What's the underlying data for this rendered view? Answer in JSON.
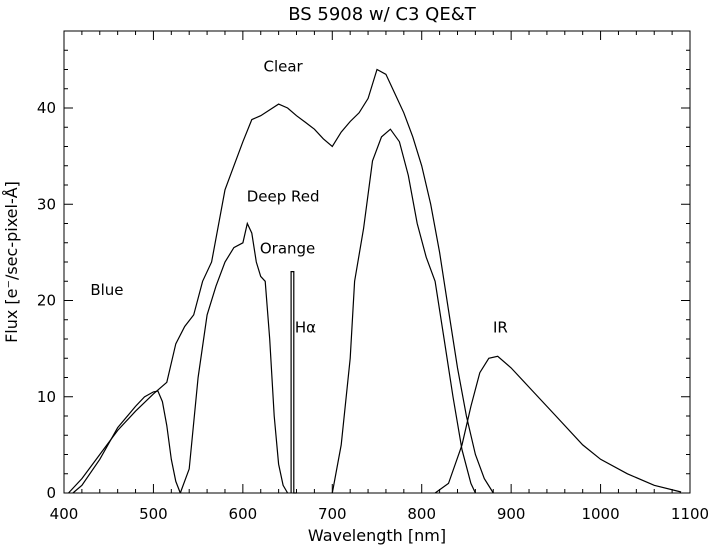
{
  "chart_data": {
    "type": "line",
    "title": "BS 5908 w/ C3 QE&T",
    "xlabel": "Wavelength [nm]",
    "ylabel": "Flux [e⁻/sec-pixel-Å]",
    "xlim": [
      400,
      1100
    ],
    "ylim": [
      0,
      48
    ],
    "xticks": [
      400,
      500,
      600,
      700,
      800,
      900,
      1000,
      1100
    ],
    "yticks": [
      0,
      10,
      20,
      30,
      40
    ],
    "grid": false,
    "annotations": [
      {
        "text": "Clear",
        "x": 645,
        "y": 44.3
      },
      {
        "text": "Deep Red",
        "x": 645,
        "y": 30.8
      },
      {
        "text": "Orange",
        "x": 650,
        "y": 25.4
      },
      {
        "text": "Blue",
        "x": 448,
        "y": 21.1
      },
      {
        "text": "Hα",
        "x": 670,
        "y": 17.2
      },
      {
        "text": "IR",
        "x": 888,
        "y": 17.2
      }
    ],
    "series": [
      {
        "name": "Clear",
        "x": [
          405,
          420,
          440,
          460,
          480,
          500,
          515,
          525,
          535,
          545,
          555,
          565,
          580,
          590,
          600,
          610,
          620,
          630,
          640,
          650,
          660,
          670,
          680,
          690,
          700,
          710,
          720,
          730,
          740,
          750,
          760,
          770,
          780,
          790,
          800,
          810,
          820,
          830,
          840,
          850,
          860,
          870,
          880
        ],
        "y": [
          0,
          1.5,
          4.0,
          6.5,
          8.5,
          10.3,
          11.5,
          15.5,
          17.3,
          18.5,
          22.0,
          24.0,
          31.5,
          34.0,
          36.5,
          38.8,
          39.2,
          39.8,
          40.4,
          40.0,
          39.2,
          38.5,
          37.8,
          36.8,
          36.0,
          37.5,
          38.6,
          39.5,
          41.0,
          44.0,
          43.5,
          41.5,
          39.5,
          37.0,
          34.0,
          30.0,
          25.0,
          19.0,
          13.0,
          8.0,
          4.0,
          1.5,
          0
        ]
      },
      {
        "name": "Blue",
        "x": [
          410,
          420,
          440,
          460,
          480,
          490,
          500,
          505,
          510,
          515,
          520,
          525,
          530
        ],
        "y": [
          0,
          0.8,
          3.5,
          6.8,
          9.0,
          10.0,
          10.5,
          10.6,
          9.5,
          7.0,
          3.5,
          1.2,
          0
        ]
      },
      {
        "name": "Orange",
        "x": [
          530,
          540,
          550,
          560,
          570,
          580,
          590,
          600,
          605,
          610,
          615,
          620,
          625,
          630,
          635,
          640,
          645,
          650
        ],
        "y": [
          0,
          2.5,
          12.0,
          18.5,
          21.5,
          24.0,
          25.5,
          26.0,
          28.0,
          27.0,
          24.0,
          22.5,
          22.0,
          16.0,
          8.0,
          3.0,
          0.8,
          0
        ]
      },
      {
        "name": "Hα",
        "x": [
          654,
          654,
          657,
          657,
          660,
          660
        ],
        "y": [
          0,
          23.0,
          23.0,
          0,
          0,
          0
        ]
      },
      {
        "name": "Deep Red",
        "x": [
          700,
          710,
          720,
          725,
          735,
          745,
          755,
          765,
          775,
          785,
          795,
          805,
          815,
          825,
          835,
          845,
          855,
          860
        ],
        "y": [
          0,
          5.0,
          14.0,
          22.0,
          27.5,
          34.5,
          37.0,
          37.8,
          36.5,
          33.0,
          28.0,
          24.5,
          22.0,
          16.0,
          10.0,
          4.5,
          1.0,
          0
        ]
      },
      {
        "name": "IR",
        "x": [
          815,
          830,
          845,
          855,
          865,
          875,
          885,
          900,
          920,
          950,
          980,
          1000,
          1030,
          1060,
          1090
        ],
        "y": [
          0,
          1.0,
          5.0,
          9.0,
          12.5,
          14.0,
          14.2,
          13.0,
          11.0,
          8.0,
          5.0,
          3.5,
          2.0,
          0.8,
          0.1
        ]
      }
    ]
  }
}
